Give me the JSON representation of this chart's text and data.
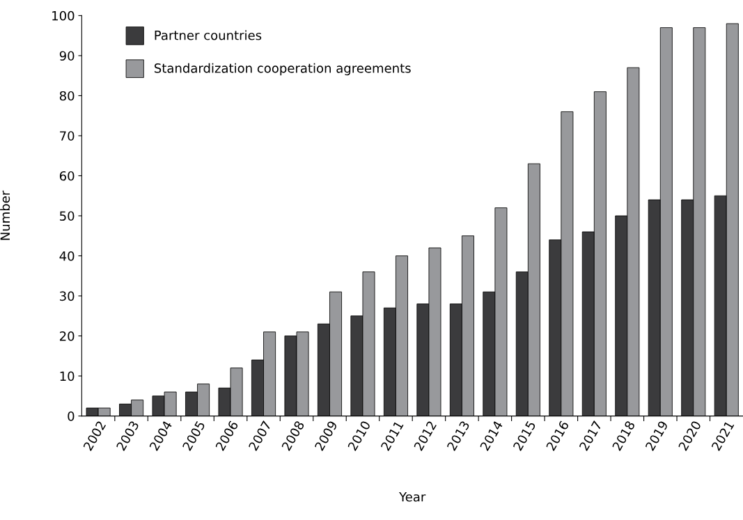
{
  "chart_data": {
    "type": "bar",
    "xlabel": "Year",
    "ylabel": "Number",
    "categories": [
      "2002",
      "2003",
      "2004",
      "2005",
      "2006",
      "2007",
      "2008",
      "2009",
      "2010",
      "2011",
      "2012",
      "2013",
      "2014",
      "2015",
      "2016",
      "2017",
      "2018",
      "2019",
      "2020",
      "2021"
    ],
    "series": [
      {
        "name": "Partner countries",
        "color": "#3b3b3d",
        "values": [
          2,
          3,
          5,
          6,
          7,
          14,
          20,
          23,
          25,
          27,
          28,
          28,
          31,
          36,
          44,
          46,
          50,
          54,
          54,
          55
        ]
      },
      {
        "name": "Standardization cooperation agreements",
        "color": "#98999c",
        "values": [
          2,
          4,
          6,
          8,
          12,
          21,
          21,
          31,
          36,
          40,
          42,
          45,
          52,
          63,
          76,
          81,
          87,
          97,
          97,
          98
        ]
      }
    ],
    "ylim": [
      0,
      100
    ],
    "yticks": [
      0,
      10,
      20,
      30,
      40,
      50,
      60,
      70,
      80,
      90,
      100
    ],
    "grid": false,
    "legend": "top left"
  }
}
